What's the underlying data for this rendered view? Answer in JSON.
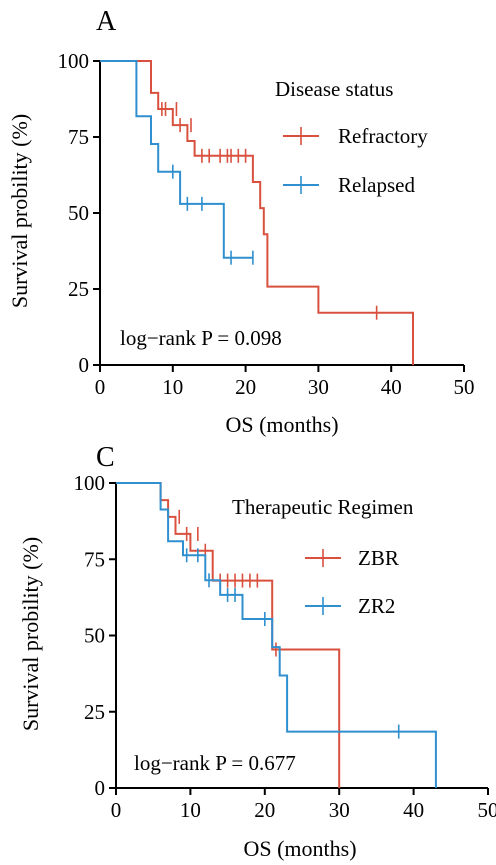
{
  "chart_data": [
    {
      "type": "line",
      "subtype": "kaplan-meier",
      "panel_label": "A",
      "xlabel": "OS (months)",
      "ylabel": "Survival probility (%)",
      "xlim": [
        0,
        50
      ],
      "ylim": [
        0,
        100
      ],
      "x_ticks": [
        0,
        10,
        20,
        30,
        40,
        50
      ],
      "y_ticks": [
        0,
        25,
        50,
        75,
        100
      ],
      "grid": false,
      "legend": {
        "title": "Disease status",
        "placement": "top-right"
      },
      "annotation": "log−rank P = 0.098",
      "series": [
        {
          "name": "Refractory",
          "color": "#d9503f",
          "steps": [
            [
              0,
              100
            ],
            [
              7,
              100
            ],
            [
              7,
              89.5
            ],
            [
              8,
              89.5
            ],
            [
              8,
              84.2
            ],
            [
              10,
              84.2
            ],
            [
              10,
              78.9
            ],
            [
              12,
              78.9
            ],
            [
              12,
              73.7
            ],
            [
              13,
              73.7
            ],
            [
              13,
              68.8
            ],
            [
              21,
              68.8
            ],
            [
              21,
              60.2
            ],
            [
              22,
              60.2
            ],
            [
              22,
              51.6
            ],
            [
              22.5,
              51.6
            ],
            [
              22.5,
              43.0
            ],
            [
              23,
              43.0
            ],
            [
              23,
              25.8
            ],
            [
              30,
              25.8
            ],
            [
              30,
              17.2
            ],
            [
              43,
              17.2
            ],
            [
              43,
              0
            ]
          ],
          "censored": [
            [
              8.5,
              84.2
            ],
            [
              9,
              84.2
            ],
            [
              10.5,
              84.2
            ],
            [
              11,
              78.9
            ],
            [
              12.5,
              78.9
            ],
            [
              14,
              68.8
            ],
            [
              15,
              68.8
            ],
            [
              16.5,
              68.8
            ],
            [
              17.5,
              68.8
            ],
            [
              18,
              68.8
            ],
            [
              19,
              68.8
            ],
            [
              20,
              68.8
            ],
            [
              38,
              17.2
            ]
          ]
        },
        {
          "name": "Relapsed",
          "color": "#2f8fcf",
          "steps": [
            [
              0,
              100
            ],
            [
              5,
              100
            ],
            [
              5,
              81.8
            ],
            [
              7,
              81.8
            ],
            [
              7,
              72.7
            ],
            [
              8,
              72.7
            ],
            [
              8,
              63.6
            ],
            [
              11,
              63.6
            ],
            [
              11,
              53.0
            ],
            [
              17,
              53.0
            ],
            [
              17,
              35.3
            ],
            [
              21,
              35.3
            ]
          ],
          "censored": [
            [
              10,
              63.6
            ],
            [
              12,
              53.0
            ],
            [
              14,
              53.0
            ],
            [
              18,
              35.3
            ],
            [
              21,
              35.3
            ]
          ]
        }
      ]
    },
    {
      "type": "line",
      "subtype": "kaplan-meier",
      "panel_label": "C",
      "xlabel": "OS (months)",
      "ylabel": "Survival probility (%)",
      "xlim": [
        0,
        50
      ],
      "ylim": [
        0,
        100
      ],
      "x_ticks": [
        0,
        10,
        20,
        30,
        40,
        50
      ],
      "y_ticks": [
        0,
        25,
        50,
        75,
        100
      ],
      "grid": false,
      "legend": {
        "title": "Therapeutic Regimen",
        "placement": "top-right"
      },
      "annotation": "log−rank P = 0.677",
      "series": [
        {
          "name": "ZBR",
          "color": "#d9503f",
          "steps": [
            [
              0,
              100
            ],
            [
              6,
              100
            ],
            [
              6,
              94.4
            ],
            [
              7,
              94.4
            ],
            [
              7,
              88.9
            ],
            [
              8,
              88.9
            ],
            [
              8,
              83.3
            ],
            [
              10,
              83.3
            ],
            [
              10,
              77.8
            ],
            [
              13,
              77.8
            ],
            [
              13,
              68.0
            ],
            [
              21,
              68.0
            ],
            [
              21,
              45.4
            ],
            [
              30,
              45.4
            ],
            [
              30,
              0
            ]
          ],
          "censored": [
            [
              8.5,
              88.9
            ],
            [
              9.5,
              83.3
            ],
            [
              11,
              83.3
            ],
            [
              12,
              77.8
            ],
            [
              14,
              68.0
            ],
            [
              15,
              68.0
            ],
            [
              16,
              68.0
            ],
            [
              17,
              68.0
            ],
            [
              18,
              68.0
            ],
            [
              19,
              68.0
            ],
            [
              21.5,
              45.4
            ]
          ]
        },
        {
          "name": "ZR2",
          "color": "#2f8fcf",
          "steps": [
            [
              0,
              100
            ],
            [
              6,
              100
            ],
            [
              6,
              91.3
            ],
            [
              7,
              91.3
            ],
            [
              7,
              80.9
            ],
            [
              9,
              80.9
            ],
            [
              9,
              76.3
            ],
            [
              12,
              76.3
            ],
            [
              12,
              68.1
            ],
            [
              14,
              68.1
            ],
            [
              14,
              63.3
            ],
            [
              17,
              63.3
            ],
            [
              17,
              55.4
            ],
            [
              21,
              55.4
            ],
            [
              21,
              46.2
            ],
            [
              22,
              46.2
            ],
            [
              22,
              36.9
            ],
            [
              23,
              36.9
            ],
            [
              23,
              18.5
            ],
            [
              43,
              18.5
            ],
            [
              43,
              0
            ]
          ],
          "censored": [
            [
              9.5,
              76.3
            ],
            [
              11,
              76.3
            ],
            [
              12.5,
              68.1
            ],
            [
              15,
              63.3
            ],
            [
              16,
              63.3
            ],
            [
              20,
              55.4
            ],
            [
              38,
              18.5
            ]
          ]
        }
      ]
    }
  ]
}
